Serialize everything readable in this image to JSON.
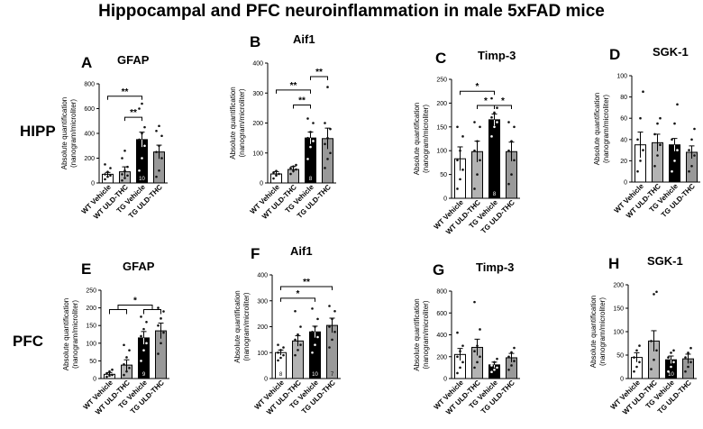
{
  "figure": {
    "title": "Hippocampal and PFC neuroinflammation in male 5xFAD mice",
    "row_labels": [
      "HIPP",
      "PFC"
    ]
  },
  "chart_data": [
    {
      "type": "bar",
      "panel": "A",
      "row": "HIPP",
      "title": "GFAP",
      "ylabel": "Absolute quantification (nanogram/microliter)",
      "categories": [
        "WT Vehicle",
        "WT ULD-THC",
        "TG Vehicle",
        "TG ULD-THC"
      ],
      "values": [
        70,
        90,
        350,
        250
      ],
      "errors": [
        15,
        40,
        60,
        55
      ],
      "ylim": [
        0,
        800
      ],
      "yticks": [
        0,
        200,
        400,
        600,
        800
      ],
      "n_labels": [
        "",
        "",
        "10",
        ""
      ],
      "points": [
        [
          30,
          50,
          60,
          70,
          90,
          120,
          150
        ],
        [
          20,
          40,
          60,
          70,
          100,
          130,
          200,
          260
        ],
        [
          100,
          200,
          300,
          350,
          400,
          450,
          600,
          640
        ],
        [
          50,
          100,
          200,
          250,
          300,
          380,
          420,
          460
        ]
      ],
      "significance": [
        {
          "from": 1,
          "to": 2,
          "label": "**",
          "y": 530
        },
        {
          "from": 0,
          "to": 2,
          "label": "**",
          "y": 700
        }
      ]
    },
    {
      "type": "bar",
      "panel": "B",
      "row": "HIPP",
      "title": "Aif1",
      "ylabel": "Absolute quantification (nanogram/microliter)",
      "categories": [
        "WT Vehicle",
        "WT ULD-THC",
        "TG Vehicle",
        "TG ULD-THC"
      ],
      "values": [
        30,
        45,
        150,
        148
      ],
      "errors": [
        8,
        10,
        20,
        35
      ],
      "ylim": [
        0,
        400
      ],
      "yticks": [
        0,
        100,
        200,
        300,
        400
      ],
      "n_labels": [
        "",
        "",
        "8",
        ""
      ],
      "points": [
        [
          15,
          25,
          30,
          35,
          40
        ],
        [
          30,
          40,
          45,
          50,
          55,
          60
        ],
        [
          80,
          120,
          140,
          150,
          170,
          200,
          215
        ],
        [
          50,
          80,
          100,
          130,
          150,
          180,
          200,
          320
        ]
      ],
      "significance": [
        {
          "from": 1,
          "to": 2,
          "label": "**",
          "y": 260
        },
        {
          "from": 0,
          "to": 2,
          "label": "**",
          "y": 310
        },
        {
          "from": 2,
          "to": 3,
          "label": "**",
          "y": 355
        }
      ]
    },
    {
      "type": "bar",
      "panel": "C",
      "row": "HIPP",
      "title": "Timp-3",
      "ylabel": "Absolute quantification (nanogram/microliter)",
      "categories": [
        "WT Vehicle",
        "WT ULD-THC",
        "TG Vehicle",
        "TG ULD-THC"
      ],
      "values": [
        83,
        98,
        165,
        98
      ],
      "errors": [
        25,
        22,
        12,
        20
      ],
      "ylim": [
        0,
        250
      ],
      "yticks": [
        0,
        50,
        100,
        150,
        200,
        250
      ],
      "n_labels": [
        "",
        "",
        "8",
        ""
      ],
      "points": [
        [
          20,
          40,
          60,
          80,
          100,
          130,
          150
        ],
        [
          20,
          50,
          80,
          100,
          120,
          150,
          160
        ],
        [
          130,
          150,
          160,
          170,
          180,
          190,
          210
        ],
        [
          30,
          50,
          80,
          100,
          120,
          150,
          160
        ]
      ],
      "significance": [
        {
          "from": 1,
          "to": 2,
          "label": "*",
          "y": 195
        },
        {
          "from": 2,
          "to": 3,
          "label": "*",
          "y": 195
        },
        {
          "from": 0,
          "to": 2,
          "label": "*",
          "y": 225
        }
      ]
    },
    {
      "type": "bar",
      "panel": "D",
      "row": "HIPP",
      "title": "SGK-1",
      "ylabel": "Absolute quantification (nanogram/microliter)",
      "categories": [
        "WT Vehicle",
        "WT ULD-THC",
        "TG Vehicle",
        "TG ULD-THC"
      ],
      "values": [
        35,
        37,
        35,
        28
      ],
      "errors": [
        12,
        8,
        6,
        6
      ],
      "ylim": [
        0,
        100
      ],
      "yticks": [
        0,
        20,
        40,
        60,
        80,
        100
      ],
      "n_labels": [
        "",
        "",
        "",
        ""
      ],
      "points": [
        [
          10,
          20,
          30,
          40,
          60,
          85
        ],
        [
          15,
          25,
          35,
          45,
          55,
          60
        ],
        [
          10,
          20,
          30,
          40,
          55,
          73
        ],
        [
          10,
          15,
          25,
          30,
          40,
          50
        ]
      ],
      "significance": []
    },
    {
      "type": "bar",
      "panel": "E",
      "row": "PFC",
      "title": "GFAP",
      "ylabel": "Absolute quantification (nanogram/microliter)",
      "categories": [
        "WT Vehicle",
        "WT ULD-THC",
        "TG Vehicle",
        "TG ULD-THC"
      ],
      "values": [
        12,
        38,
        115,
        135
      ],
      "errors": [
        5,
        15,
        18,
        22
      ],
      "ylim": [
        0,
        250
      ],
      "yticks": [
        0,
        50,
        100,
        150,
        200,
        250
      ],
      "n_labels": [
        "",
        "",
        "9",
        ""
      ],
      "points": [
        [
          5,
          8,
          10,
          15,
          20,
          25
        ],
        [
          10,
          20,
          30,
          40,
          60,
          80,
          95
        ],
        [
          50,
          80,
          100,
          120,
          140,
          160,
          175
        ],
        [
          70,
          100,
          130,
          150,
          170,
          190,
          200
        ]
      ],
      "significance": [
        {
          "group": [
            0,
            1
          ],
          "to_group": [
            2,
            3
          ],
          "label": "*",
          "y": 195
        }
      ]
    },
    {
      "type": "bar",
      "panel": "F",
      "row": "PFC",
      "title": "Aif1",
      "ylabel": "Absolute quantification (nanogram/microliter)",
      "categories": [
        "WT Vehicle",
        "WT ULD-THC",
        "TG Vehicle",
        "TG ULD-THC"
      ],
      "values": [
        100,
        145,
        180,
        205
      ],
      "errors": [
        10,
        20,
        22,
        28
      ],
      "ylim": [
        0,
        400
      ],
      "yticks": [
        0,
        100,
        200,
        300,
        400
      ],
      "n_labels": [
        "8",
        "",
        "10",
        "7"
      ],
      "points": [
        [
          70,
          80,
          90,
          100,
          110,
          120,
          130
        ],
        [
          90,
          110,
          130,
          150,
          170,
          200,
          260
        ],
        [
          100,
          130,
          160,
          180,
          200,
          230,
          270
        ],
        [
          120,
          150,
          180,
          200,
          230,
          260,
          280
        ]
      ],
      "significance": [
        {
          "from": 0,
          "to": 2,
          "label": "*",
          "y": 310
        },
        {
          "from": 0,
          "to": 3,
          "label": "**",
          "y": 355
        }
      ]
    },
    {
      "type": "bar",
      "panel": "G",
      "row": "PFC",
      "title": "Timp-3",
      "ylabel": "Absolute quantification (nanogram/microliter)",
      "categories": [
        "WT Vehicle",
        "WT ULD-THC",
        "TG Vehicle",
        "TG ULD-THC"
      ],
      "values": [
        220,
        285,
        125,
        190
      ],
      "errors": [
        55,
        75,
        25,
        40
      ],
      "ylim": [
        0,
        800
      ],
      "yticks": [
        0,
        200,
        400,
        600,
        800
      ],
      "n_labels": [
        "",
        "",
        "",
        ""
      ],
      "points": [
        [
          50,
          100,
          150,
          200,
          250,
          300,
          420
        ],
        [
          100,
          150,
          200,
          250,
          300,
          450,
          700
        ],
        [
          60,
          80,
          100,
          120,
          150,
          180
        ],
        [
          80,
          120,
          160,
          200,
          240,
          280
        ]
      ],
      "significance": []
    },
    {
      "type": "bar",
      "panel": "H",
      "row": "PFC",
      "title": "SGK-1",
      "ylabel": "Absolute quantification (nanogram/microliter)",
      "categories": [
        "WT Vehicle",
        "WT ULD-THC",
        "TG Vehicle",
        "TG ULD-THC"
      ],
      "values": [
        45,
        80,
        40,
        42
      ],
      "errors": [
        10,
        22,
        8,
        10
      ],
      "ylim": [
        0,
        200
      ],
      "yticks": [
        0,
        50,
        100,
        150,
        200
      ],
      "n_labels": [
        "",
        "",
        "10",
        ""
      ],
      "points": [
        [
          15,
          25,
          35,
          45,
          60,
          70
        ],
        [
          20,
          40,
          60,
          80,
          180,
          185
        ],
        [
          15,
          25,
          35,
          45,
          55,
          60
        ],
        [
          15,
          25,
          35,
          45,
          55,
          65
        ]
      ],
      "significance": []
    }
  ],
  "colors": {
    "bar_fill": [
      "#ffffff",
      "#b3b3b3",
      "#000000",
      "#999999"
    ],
    "bar_stroke": "#000000",
    "point_dark": "#111111",
    "point_light": "#ffffff"
  }
}
